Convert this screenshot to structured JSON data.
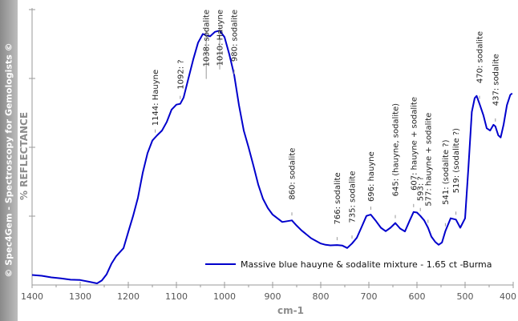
{
  "credit_text": "© Spec4Gem - Spectroscopy for Gemologists ©",
  "chart_data": {
    "type": "line",
    "xlabel": "cm-1",
    "ylabel": "% REFLECTANCE",
    "xlim": [
      1400,
      400
    ],
    "x_reversed": true,
    "ylim": [
      0,
      100
    ],
    "y_ticks_labeled": false,
    "x_ticks": [
      1400,
      1300,
      1200,
      1100,
      1000,
      900,
      800,
      700,
      600,
      500,
      400
    ],
    "grid": false,
    "legend_position": "bottom-right",
    "series": [
      {
        "name": "Massive blue hauyne & sodalite  mixture - 1.65 ct -Burma",
        "color": "#0000cc",
        "points": [
          [
            1400,
            3.8
          ],
          [
            1380,
            3.5
          ],
          [
            1360,
            2.9
          ],
          [
            1340,
            2.5
          ],
          [
            1320,
            2.0
          ],
          [
            1300,
            1.9
          ],
          [
            1280,
            1.2
          ],
          [
            1265,
            0.6
          ],
          [
            1255,
            1.7
          ],
          [
            1245,
            4.1
          ],
          [
            1235,
            8.1
          ],
          [
            1225,
            11.0
          ],
          [
            1210,
            14.0
          ],
          [
            1200,
            20.2
          ],
          [
            1190,
            26.3
          ],
          [
            1180,
            33.2
          ],
          [
            1170,
            42.7
          ],
          [
            1160,
            50.2
          ],
          [
            1150,
            55.0
          ],
          [
            1140,
            57.0
          ],
          [
            1130,
            58.8
          ],
          [
            1120,
            62.1
          ],
          [
            1110,
            66.8
          ],
          [
            1100,
            68.7
          ],
          [
            1092,
            69.0
          ],
          [
            1085,
            71.4
          ],
          [
            1075,
            78.7
          ],
          [
            1065,
            85.9
          ],
          [
            1055,
            92.3
          ],
          [
            1045,
            95.6
          ],
          [
            1038,
            95.1
          ],
          [
            1030,
            94.7
          ],
          [
            1020,
            96.4
          ],
          [
            1010,
            96.9
          ],
          [
            1000,
            94.4
          ],
          [
            990,
            87.8
          ],
          [
            980,
            80.1
          ],
          [
            970,
            68.5
          ],
          [
            960,
            58.8
          ],
          [
            950,
            52.4
          ],
          [
            940,
            45.5
          ],
          [
            930,
            38.3
          ],
          [
            920,
            32.8
          ],
          [
            910,
            29.3
          ],
          [
            900,
            26.8
          ],
          [
            890,
            25.4
          ],
          [
            880,
            24.0
          ],
          [
            860,
            24.6
          ],
          [
            850,
            22.6
          ],
          [
            840,
            20.8
          ],
          [
            820,
            17.8
          ],
          [
            800,
            15.8
          ],
          [
            790,
            15.3
          ],
          [
            780,
            15.1
          ],
          [
            766,
            15.2
          ],
          [
            755,
            15.0
          ],
          [
            745,
            14.1
          ],
          [
            735,
            15.8
          ],
          [
            725,
            18.0
          ],
          [
            715,
            22.1
          ],
          [
            705,
            26.3
          ],
          [
            696,
            26.8
          ],
          [
            685,
            24.3
          ],
          [
            675,
            21.8
          ],
          [
            665,
            20.5
          ],
          [
            655,
            21.8
          ],
          [
            645,
            23.6
          ],
          [
            635,
            21.5
          ],
          [
            625,
            20.4
          ],
          [
            615,
            24.6
          ],
          [
            607,
            27.8
          ],
          [
            600,
            27.6
          ],
          [
            593,
            26.3
          ],
          [
            585,
            24.6
          ],
          [
            577,
            21.8
          ],
          [
            570,
            18.4
          ],
          [
            562,
            16.4
          ],
          [
            555,
            15.3
          ],
          [
            548,
            16.2
          ],
          [
            541,
            20.5
          ],
          [
            530,
            25.4
          ],
          [
            519,
            24.9
          ],
          [
            510,
            21.8
          ],
          [
            500,
            25.4
          ],
          [
            493,
            44.9
          ],
          [
            486,
            65.9
          ],
          [
            480,
            71.2
          ],
          [
            476,
            72.0
          ],
          [
            470,
            69.0
          ],
          [
            462,
            64.7
          ],
          [
            455,
            59.7
          ],
          [
            448,
            58.8
          ],
          [
            441,
            61.0
          ],
          [
            437,
            60.4
          ],
          [
            431,
            57.0
          ],
          [
            426,
            56.2
          ],
          [
            420,
            61.0
          ],
          [
            413,
            68.5
          ],
          [
            406,
            72.4
          ],
          [
            402,
            73.0
          ]
        ]
      }
    ],
    "annotations": [
      {
        "x": 1144,
        "label": "1144: Hauyne"
      },
      {
        "x": 1092,
        "label": "1092: ?"
      },
      {
        "x": 1038,
        "label": "1038: sodalite"
      },
      {
        "x": 1010,
        "label": "1010: Hauyne"
      },
      {
        "x": 980,
        "label": "980: sodalite"
      },
      {
        "x": 860,
        "label": "860: sodalite"
      },
      {
        "x": 766,
        "label": "766: sodalite"
      },
      {
        "x": 735,
        "label": "735: sodalite"
      },
      {
        "x": 696,
        "label": "696: hauyne"
      },
      {
        "x": 645,
        "label": "645: (hauyne, sodalite)"
      },
      {
        "x": 607,
        "label": "607: hauyne + sodalite"
      },
      {
        "x": 593,
        "label": "593: ?"
      },
      {
        "x": 577,
        "label": "577: hauyne + sodalite"
      },
      {
        "x": 541,
        "label": "541: (sodalite ?)"
      },
      {
        "x": 519,
        "label": "519: (sodalite ?)"
      },
      {
        "x": 470,
        "label": "470: sodalite"
      },
      {
        "x": 437,
        "label": "437: sodalite"
      }
    ]
  }
}
